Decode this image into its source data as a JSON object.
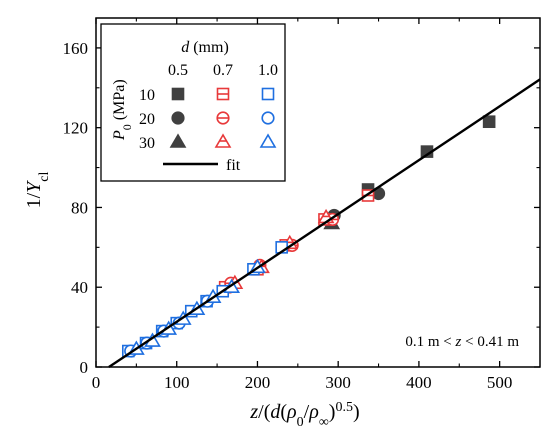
{
  "chart_data": {
    "type": "scatter",
    "xlabel_parts": [
      "z",
      "/(",
      "d",
      "(",
      "ρ",
      "0",
      "/",
      "ρ",
      "∞",
      ")",
      "0.5",
      ")"
    ],
    "ylabel_parts": [
      "1/",
      "Y",
      "cl"
    ],
    "xlim": [
      0,
      550
    ],
    "ylim": [
      0,
      175
    ],
    "xticks": [
      0,
      100,
      200,
      300,
      400,
      500
    ],
    "yticks": [
      0,
      40,
      80,
      120,
      160
    ],
    "annotation_parts": [
      "0.1 m < ",
      "z",
      " < 0.41 m"
    ],
    "legend": {
      "placement": "top-left",
      "d_header_parts": [
        "d",
        " (mm)"
      ],
      "p_header_parts": [
        "P",
        "0",
        " (MPa)"
      ],
      "d_values": [
        "0.5",
        "0.7",
        "1.0"
      ],
      "p_values": [
        "10",
        "20",
        "30"
      ],
      "fit_label": "fit"
    },
    "colors": {
      "d0.5": "#404040",
      "d0.7": "#e8393a",
      "d1.0": "#1f6fe0",
      "fit": "#000000"
    },
    "marker_shapes": {
      "P10": "square",
      "P20": "circle",
      "P30": "triangle"
    },
    "series": [
      {
        "d": "0.5",
        "p": "10",
        "points": [
          [
            337,
            89
          ],
          [
            410,
            108
          ],
          [
            487,
            123
          ]
        ]
      },
      {
        "d": "0.5",
        "p": "20",
        "points": [
          [
            295,
            76
          ],
          [
            350,
            87
          ]
        ]
      },
      {
        "d": "0.5",
        "p": "30",
        "points": [
          [
            292,
            72
          ]
        ]
      },
      {
        "d": "0.7",
        "p": "10",
        "points": [
          [
            160,
            40
          ],
          [
            200,
            49
          ],
          [
            235,
            61
          ],
          [
            283,
            74
          ],
          [
            337,
            86
          ]
        ]
      },
      {
        "d": "0.7",
        "p": "20",
        "points": [
          [
            167,
            42
          ],
          [
            203,
            51
          ],
          [
            243,
            61
          ],
          [
            293,
            74
          ]
        ]
      },
      {
        "d": "0.7",
        "p": "30",
        "points": [
          [
            172,
            42
          ],
          [
            205,
            50
          ],
          [
            240,
            62
          ],
          [
            285,
            75
          ]
        ]
      },
      {
        "d": "1.0",
        "p": "10",
        "points": [
          [
            40,
            8
          ],
          [
            62,
            12
          ],
          [
            82,
            18
          ],
          [
            100,
            22
          ],
          [
            118,
            28
          ],
          [
            137,
            33
          ],
          [
            157,
            38
          ],
          [
            195,
            49
          ],
          [
            230,
            60
          ]
        ]
      },
      {
        "d": "1.0",
        "p": "20",
        "points": [
          [
            43,
            8
          ],
          [
            63,
            12
          ],
          [
            84,
            18
          ],
          [
            103,
            22
          ],
          [
            138,
            33
          ]
        ]
      },
      {
        "d": "1.0",
        "p": "30",
        "points": [
          [
            50,
            9
          ],
          [
            70,
            13
          ],
          [
            90,
            19
          ],
          [
            108,
            24
          ],
          [
            125,
            29
          ],
          [
            145,
            35
          ],
          [
            168,
            40
          ],
          [
            200,
            50
          ]
        ]
      }
    ],
    "fit_line": {
      "x0": 16,
      "y0": 0,
      "x1": 550,
      "y1": 144.2
    }
  }
}
